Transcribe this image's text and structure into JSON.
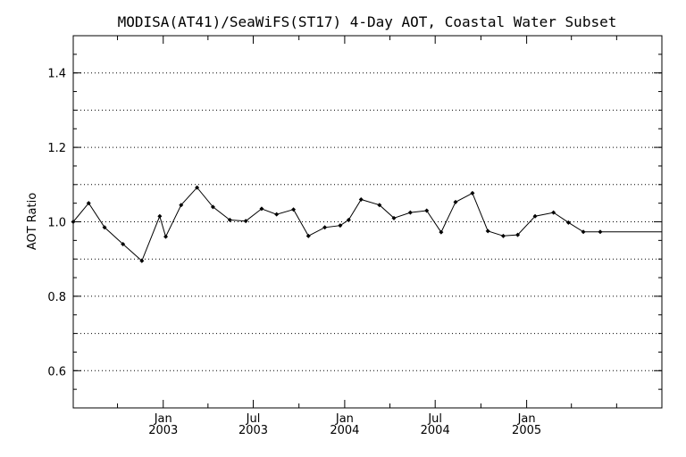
{
  "chart_data": {
    "type": "line",
    "title": "MODISA(AT41)/SeaWiFS(ST17) 4-Day AOT, Coastal Water Subset",
    "xlabel": "",
    "ylabel": "AOT Ratio",
    "ylim": [
      0.5,
      1.5
    ],
    "xlim": [
      "2002-07-04",
      "2005-09-30"
    ],
    "grid": "horizontal dotted",
    "yticks": [
      "0.6",
      "0.8",
      "1.0",
      "1.2",
      "1.4"
    ],
    "xticks": [
      {
        "month": "Jan",
        "year": "2003",
        "date": "2003-01-01"
      },
      {
        "month": "Jul",
        "year": "2003",
        "date": "2003-07-01"
      },
      {
        "month": "Jan",
        "year": "2004",
        "date": "2004-01-01"
      },
      {
        "month": "Jul",
        "year": "2004",
        "date": "2004-07-01"
      },
      {
        "month": "Jan",
        "year": "2005",
        "date": "2005-01-01"
      }
    ],
    "series": [
      {
        "x": [
          "2002-07-04",
          "2002-08-04",
          "2002-09-05",
          "2002-10-12",
          "2002-11-19",
          "2002-12-25",
          "2003-01-06",
          "2003-02-06",
          "2003-03-10",
          "2003-04-11",
          "2003-05-15",
          "2003-06-16",
          "2003-07-18",
          "2003-08-17",
          "2003-09-20",
          "2003-10-20",
          "2003-11-22",
          "2003-12-23",
          "2004-01-09",
          "2004-02-03",
          "2004-03-11",
          "2004-04-09",
          "2004-05-12",
          "2004-06-14",
          "2004-07-13",
          "2004-08-11",
          "2004-09-14",
          "2004-10-15",
          "2004-11-15",
          "2004-12-14",
          "2005-01-18",
          "2005-02-24",
          "2005-03-26",
          "2005-04-25",
          "2005-05-29",
          "2005-09-30"
        ],
        "values": [
          1.0,
          1.05,
          0.985,
          0.94,
          0.895,
          1.015,
          0.96,
          1.045,
          1.092,
          1.04,
          1.005,
          1.002,
          1.035,
          1.02,
          1.033,
          0.962,
          0.985,
          0.99,
          1.005,
          1.06,
          1.045,
          1.01,
          1.025,
          1.03,
          0.972,
          1.053,
          1.077,
          0.975,
          0.962,
          0.965,
          1.015,
          1.025,
          0.998,
          0.973,
          0.973,
          0.973
        ]
      }
    ]
  }
}
